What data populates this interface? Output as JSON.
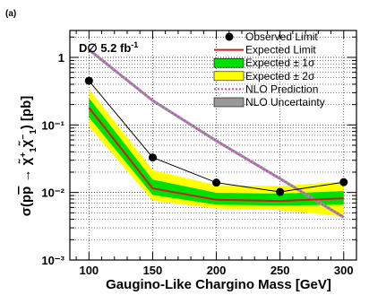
{
  "chart_data": {
    "type": "line",
    "panel_label": "(a)",
    "annotation": "D∅ 5.2 fb⁻¹",
    "xlabel": "Gaugino-Like Chargino Mass [GeV]",
    "ylabel": "σ(p p̄ → χ̃₁⁺χ̃₁⁻) [pb]",
    "x_scale": "linear",
    "y_scale": "log",
    "xlim": [
      85,
      310
    ],
    "ylim": [
      0.001,
      2.5
    ],
    "grid": true,
    "x_ticks": [
      "100",
      "150",
      "200",
      "250",
      "300"
    ],
    "y_ticks": [
      "10⁻³",
      "10⁻²",
      "10⁻¹",
      "1"
    ],
    "legend_position": "top-right",
    "colors": {
      "observed": "#000000",
      "expected": "#d11a1a",
      "band1": "#00e000",
      "band2": "#ffff00",
      "nlo": "#cc44cc",
      "nlo_uncertainty": "#999999"
    },
    "series": [
      {
        "name": "Observed Limit",
        "x": [
          100,
          150,
          200,
          250,
          300
        ],
        "y": [
          0.45,
          0.033,
          0.014,
          0.0102,
          0.0142
        ]
      },
      {
        "name": "Expected Limit",
        "x": [
          100,
          150,
          200,
          250,
          300
        ],
        "y": [
          0.18,
          0.0115,
          0.0078,
          0.0075,
          0.0082
        ]
      },
      {
        "name": "Expected ± 1σ",
        "x": [
          100,
          150,
          200,
          250,
          300
        ],
        "low": [
          0.13,
          0.0092,
          0.0066,
          0.0064,
          0.0066
        ],
        "high": [
          0.25,
          0.0155,
          0.0099,
          0.0096,
          0.0105
        ]
      },
      {
        "name": "Expected ± 2σ",
        "x": [
          100,
          150,
          200,
          250,
          300
        ],
        "low": [
          0.095,
          0.0076,
          0.0058,
          0.0055,
          0.0044
        ],
        "high": [
          0.34,
          0.0215,
          0.0128,
          0.0125,
          0.0145
        ]
      },
      {
        "name": "NLO Prediction",
        "x": [
          100,
          150,
          200,
          250,
          300
        ],
        "y": [
          1.3,
          0.23,
          0.058,
          0.016,
          0.0043
        ]
      },
      {
        "name": "NLO Uncertainty"
      }
    ]
  }
}
